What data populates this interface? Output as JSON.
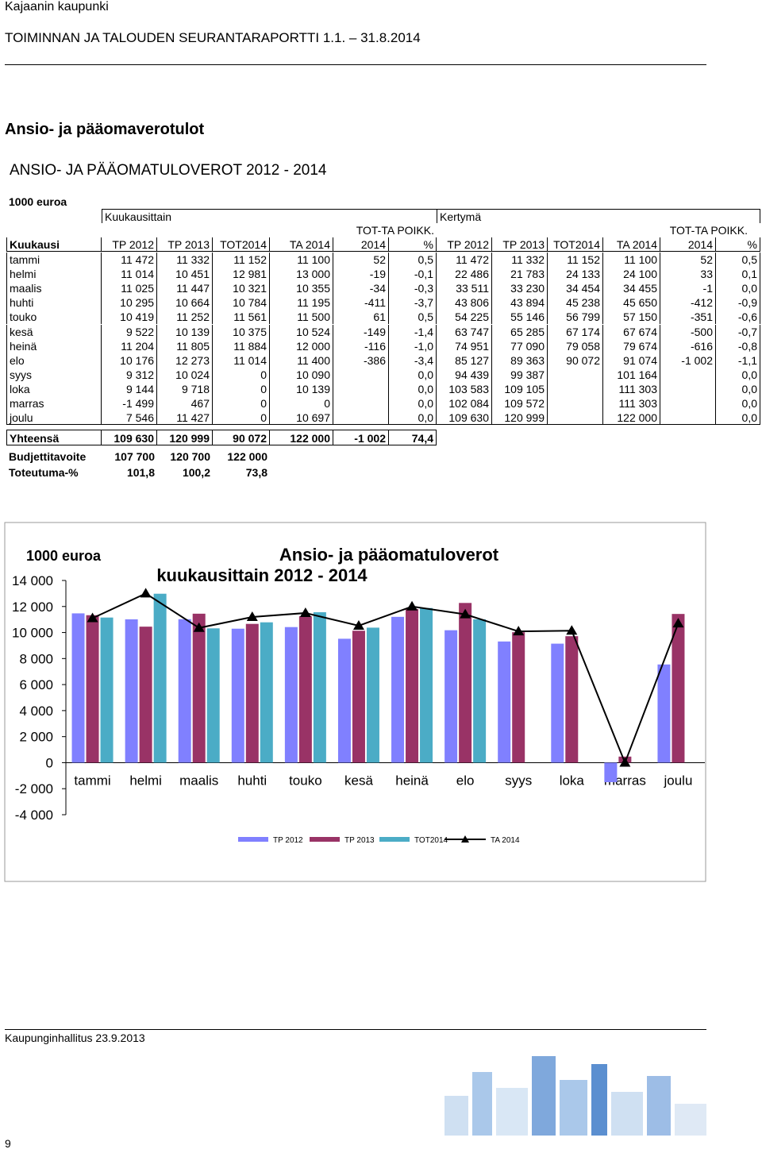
{
  "header": {
    "org": "Kajaanin kaupunki",
    "report": "TOIMINNAN JA TALOUDEN SEURANTARAPORTTI 1.1. – 31.8.2014"
  },
  "section_title": "Ansio- ja pääomaverotulot",
  "table": {
    "title": "ANSIO- JA PÄÄOMATULOVEROT 2012 - 2014",
    "unit": "1000 euroa",
    "groups": [
      "Kuukausittain",
      "Kertymä"
    ],
    "super_header": [
      "TOT-TA POIKK.",
      "TOT-TA POIKK."
    ],
    "columns": [
      "Kuukausi",
      "TP 2012",
      "TP 2013",
      "TOT2014",
      "TA 2014",
      "2014",
      "%",
      "TP 2012",
      "TP 2013",
      "TOT2014",
      "TA 2014",
      "2014",
      "%"
    ],
    "rows": [
      [
        "tammi",
        "11 472",
        "11 332",
        "11 152",
        "11 100",
        "52",
        "0,5",
        "11 472",
        "11 332",
        "11 152",
        "11 100",
        "52",
        "0,5"
      ],
      [
        "helmi",
        "11 014",
        "10 451",
        "12 981",
        "13 000",
        "-19",
        "-0,1",
        "22 486",
        "21 783",
        "24 133",
        "24 100",
        "33",
        "0,1"
      ],
      [
        "maalis",
        "11 025",
        "11 447",
        "10 321",
        "10 355",
        "-34",
        "-0,3",
        "33 511",
        "33 230",
        "34 454",
        "34 455",
        "-1",
        "0,0"
      ],
      [
        "huhti",
        "10 295",
        "10 664",
        "10 784",
        "11 195",
        "-411",
        "-3,7",
        "43 806",
        "43 894",
        "45 238",
        "45 650",
        "-412",
        "-0,9"
      ],
      [
        "touko",
        "10 419",
        "11 252",
        "11 561",
        "11 500",
        "61",
        "0,5",
        "54 225",
        "55 146",
        "56 799",
        "57 150",
        "-351",
        "-0,6"
      ],
      [
        "kesä",
        "9 522",
        "10 139",
        "10 375",
        "10 524",
        "-149",
        "-1,4",
        "63 747",
        "65 285",
        "67 174",
        "67 674",
        "-500",
        "-0,7"
      ],
      [
        "heinä",
        "11 204",
        "11 805",
        "11 884",
        "12 000",
        "-116",
        "-1,0",
        "74 951",
        "77 090",
        "79 058",
        "79 674",
        "-616",
        "-0,8"
      ],
      [
        "elo",
        "10 176",
        "12 273",
        "11 014",
        "11 400",
        "-386",
        "-3,4",
        "85 127",
        "89 363",
        "90 072",
        "91 074",
        "-1 002",
        "-1,1"
      ],
      [
        "syys",
        "9 312",
        "10 024",
        "0",
        "10 090",
        null,
        "0,0",
        "94 439",
        "99 387",
        null,
        "101 164",
        null,
        "0,0"
      ],
      [
        "loka",
        "9 144",
        "9 718",
        "0",
        "10 139",
        null,
        "0,0",
        "103 583",
        "109 105",
        null,
        "111 303",
        null,
        "0,0"
      ],
      [
        "marras",
        "-1 499",
        "467",
        "0",
        "0",
        null,
        "0,0",
        "102 084",
        "109 572",
        null,
        "111 303",
        null,
        "0,0"
      ],
      [
        "joulu",
        "7 546",
        "11 427",
        "0",
        "10 697",
        null,
        "0,0",
        "109 630",
        "120 999",
        null,
        "122 000",
        null,
        "0,0"
      ]
    ],
    "total": [
      "Yhteensä",
      "109 630",
      "120 999",
      "90 072",
      "122 000",
      "-1 002",
      "74,4"
    ],
    "extra": [
      [
        "Budjettitavoite",
        "107 700",
        "120 700",
        "122 000"
      ],
      [
        "Toteutuma-%",
        "101,8",
        "100,2",
        "73,8"
      ]
    ]
  },
  "chart_data": {
    "type": "bar",
    "title": "Ansio- ja pääomatuloverot",
    "subtitle": "kuukausittain 2012 - 2014",
    "y_label": "1000 euroa",
    "categories": [
      "tammi",
      "helmi",
      "maalis",
      "huhti",
      "touko",
      "kesä",
      "heinä",
      "elo",
      "syys",
      "loka",
      "marras",
      "joulu"
    ],
    "series": [
      {
        "name": "TP 2012",
        "color": "#8080ff",
        "values": [
          11472,
          11014,
          11025,
          10295,
          10419,
          9522,
          11204,
          10176,
          9312,
          9144,
          -1499,
          7546
        ]
      },
      {
        "name": "TP 2013",
        "color": "#993366",
        "values": [
          11332,
          10451,
          11447,
          10664,
          11252,
          10139,
          11805,
          12273,
          10024,
          9718,
          467,
          11427
        ]
      },
      {
        "name": "TOT2014",
        "color": "#4bacc6",
        "values": [
          11152,
          12981,
          10321,
          10784,
          11561,
          10375,
          11884,
          11014,
          0,
          0,
          0,
          0
        ]
      },
      {
        "name": "TA 2014",
        "type": "line",
        "color": "#000000",
        "values": [
          11100,
          13000,
          10355,
          11195,
          11500,
          10524,
          12000,
          11400,
          10090,
          10139,
          0,
          10697
        ]
      }
    ],
    "ylim": [
      -4000,
      14000
    ],
    "yticks": [
      {
        "value": -4000,
        "label": "-4 000"
      },
      {
        "value": -2000,
        "label": "-2 000"
      },
      0,
      {
        "value": 2000,
        "label": "2 000"
      },
      {
        "value": 4000,
        "label": "4 000"
      },
      {
        "value": 6000,
        "label": "6 000"
      },
      {
        "value": 8000,
        "label": "8 000"
      },
      {
        "value": 10000,
        "label": "10 000"
      },
      {
        "value": 12000,
        "label": "12 000"
      },
      {
        "value": 14000,
        "label": "14 000"
      }
    ],
    "legend": "bottom"
  },
  "footer": {
    "text": "Kaupunginhallitus 23.9.2013",
    "page": "9"
  }
}
